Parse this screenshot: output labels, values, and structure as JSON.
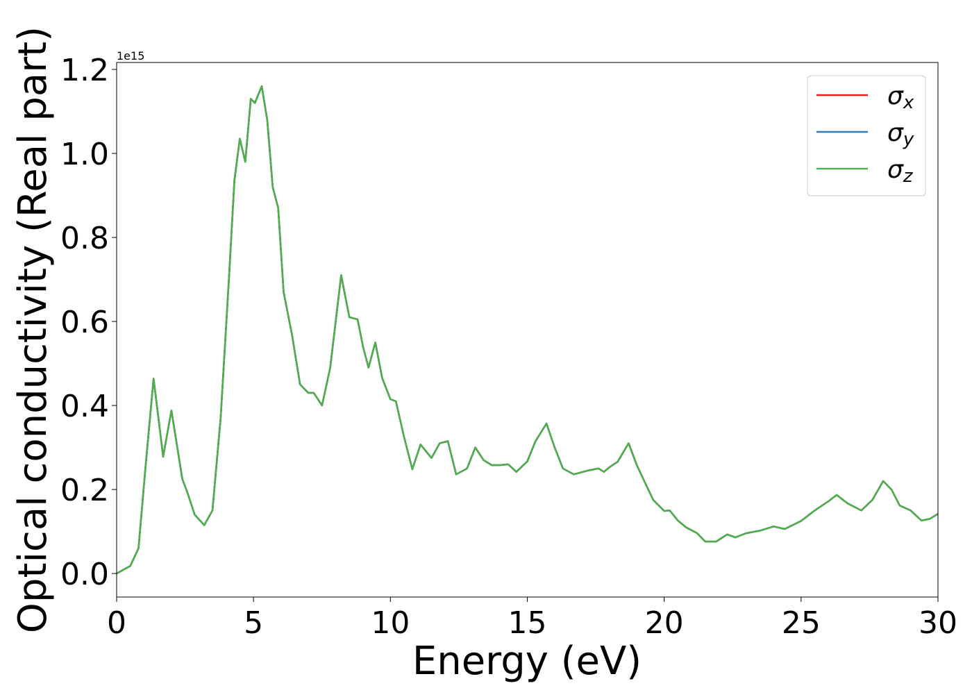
{
  "chart_data": {
    "type": "line",
    "title": "",
    "xlabel": "Energy (eV)",
    "ylabel": "Optical conductivity (Real part)",
    "y_offset_text": "1e15",
    "xlim": [
      0,
      30
    ],
    "ylim": [
      -0.056,
      1.2165
    ],
    "xticks": [
      0,
      5,
      10,
      15,
      20,
      25,
      30
    ],
    "xtick_labels": [
      "0",
      "5",
      "10",
      "15",
      "20",
      "25",
      "30"
    ],
    "yticks": [
      0.0,
      0.2,
      0.4,
      0.6,
      0.8,
      1.0,
      1.2
    ],
    "ytick_labels": [
      "0.0",
      "0.2",
      "0.4",
      "0.6",
      "0.8",
      "1.0",
      "1.2"
    ],
    "grid": false,
    "legend_position": "top-right",
    "x": [
      0,
      0.5,
      0.8,
      1.05,
      1.35,
      1.7,
      2.0,
      2.4,
      2.6,
      2.85,
      3.2,
      3.5,
      3.8,
      4.1,
      4.3,
      4.5,
      4.7,
      4.9,
      5.05,
      5.3,
      5.5,
      5.7,
      5.9,
      6.1,
      6.4,
      6.7,
      7.0,
      7.2,
      7.5,
      7.8,
      8.2,
      8.5,
      8.8,
      9.0,
      9.2,
      9.45,
      9.7,
      10.0,
      10.2,
      10.5,
      10.8,
      11.1,
      11.5,
      11.8,
      12.1,
      12.4,
      12.8,
      13.1,
      13.4,
      13.7,
      14.0,
      14.3,
      14.6,
      15.0,
      15.3,
      15.7,
      16.0,
      16.3,
      16.7,
      17.2,
      17.6,
      17.8,
      18.0,
      18.3,
      18.7,
      19.0,
      19.3,
      19.6,
      20.0,
      20.2,
      20.5,
      20.8,
      21.2,
      21.5,
      21.9,
      22.3,
      22.6,
      23.0,
      23.5,
      24.0,
      24.4,
      25.0,
      25.5,
      26.0,
      26.3,
      26.7,
      27.2,
      27.6,
      28.0,
      28.3,
      28.6,
      29.0,
      29.4,
      29.7,
      30.0
    ],
    "y": [
      0,
      0.018,
      0.06,
      0.25,
      0.464,
      0.278,
      0.388,
      0.225,
      0.19,
      0.14,
      0.115,
      0.15,
      0.37,
      0.7,
      0.935,
      1.035,
      0.98,
      1.13,
      1.12,
      1.16,
      1.08,
      0.92,
      0.87,
      0.67,
      0.57,
      0.45,
      0.43,
      0.43,
      0.4,
      0.49,
      0.71,
      0.61,
      0.605,
      0.54,
      0.49,
      0.55,
      0.465,
      0.415,
      0.41,
      0.325,
      0.248,
      0.307,
      0.275,
      0.31,
      0.315,
      0.236,
      0.25,
      0.3,
      0.27,
      0.258,
      0.258,
      0.26,
      0.242,
      0.267,
      0.315,
      0.357,
      0.3,
      0.25,
      0.236,
      0.245,
      0.25,
      0.242,
      0.253,
      0.266,
      0.31,
      0.258,
      0.216,
      0.175,
      0.149,
      0.15,
      0.126,
      0.11,
      0.096,
      0.076,
      0.076,
      0.093,
      0.086,
      0.096,
      0.102,
      0.112,
      0.106,
      0.125,
      0.15,
      0.172,
      0.187,
      0.167,
      0.15,
      0.175,
      0.22,
      0.2,
      0.162,
      0.15,
      0.126,
      0.13,
      0.142
    ],
    "series": [
      {
        "name": "σx",
        "symbol": "σ",
        "subscript": "x",
        "color": "#e41a1c",
        "values_from": "y"
      },
      {
        "name": "σy",
        "symbol": "σ",
        "subscript": "y",
        "color": "#377eb8",
        "values_from": "y"
      },
      {
        "name": "σz",
        "symbol": "σ",
        "subscript": "z",
        "color": "#4daf4a",
        "values_from": "y"
      }
    ]
  }
}
